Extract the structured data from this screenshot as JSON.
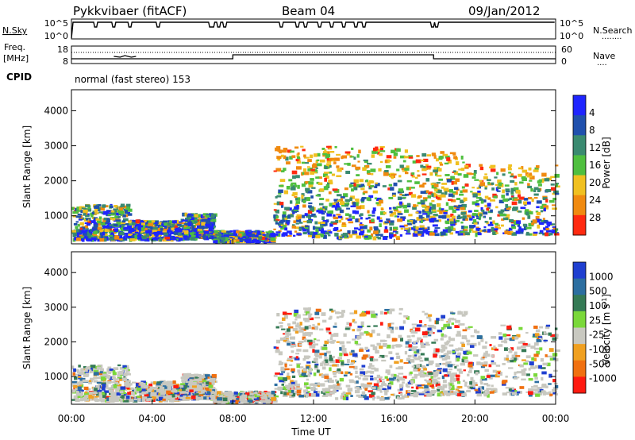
{
  "header": {
    "radar": "Pykkvibaer (fitACF)",
    "beam": "Beam 04",
    "date": "09/Jan/2012"
  },
  "sky_panel": {
    "left_label": "N.Sky",
    "left_ticks": [
      "10^5",
      "10^0"
    ],
    "right_ticks": [
      "10^5",
      "10^0"
    ],
    "right_label": "N.Search",
    "right_dots": "........"
  },
  "freq_panel": {
    "left_label_1": "Freq.",
    "left_label_2": "[MHz]",
    "left_ticks": [
      "18",
      "8"
    ],
    "right_ticks": [
      "60",
      "0"
    ],
    "right_label": "Nave",
    "right_dots": "...."
  },
  "cpid": {
    "label": "CPID",
    "value": "normal (fast stereo) 153"
  },
  "chart_data": [
    {
      "type": "heatmap",
      "name": "power",
      "ylabel": "Slant Range [km]",
      "yticks": [
        "1000",
        "2000",
        "3000",
        "4000"
      ],
      "ylim": [
        200,
        4600
      ],
      "xlim": [
        0,
        24
      ],
      "colorbar": {
        "label": "Power [dB]",
        "ticks": [
          "4",
          "8",
          "12",
          "16",
          "20",
          "24",
          "28"
        ],
        "colors": [
          "#1f25ff",
          "#2050ad",
          "#3a8a70",
          "#4fbf3f",
          "#f0c020",
          "#f08a10",
          "#ff2a10"
        ]
      }
    },
    {
      "type": "heatmap",
      "name": "velocity",
      "ylabel": "Slant Range [km]",
      "yticks": [
        "1000",
        "2000",
        "3000",
        "4000"
      ],
      "ylim": [
        200,
        4600
      ],
      "xlim": [
        0,
        24
      ],
      "xticks": [
        "00:00",
        "04:00",
        "08:00",
        "12:00",
        "16:00",
        "20:00",
        "00:00"
      ],
      "xlabel": "Time UT",
      "colorbar": {
        "label": "Velocity [m s",
        "label_sup": "-1",
        "label_end": "]",
        "ticks": [
          "1000",
          "500",
          "100",
          "25",
          "-25",
          "-100",
          "-500",
          "-1000"
        ],
        "colors": [
          "#1f3fd0",
          "#2c6ea0",
          "#357a55",
          "#7ad83a",
          "#c8c8c0",
          "#f0a020",
          "#f07010",
          "#ff1a10"
        ]
      }
    }
  ]
}
